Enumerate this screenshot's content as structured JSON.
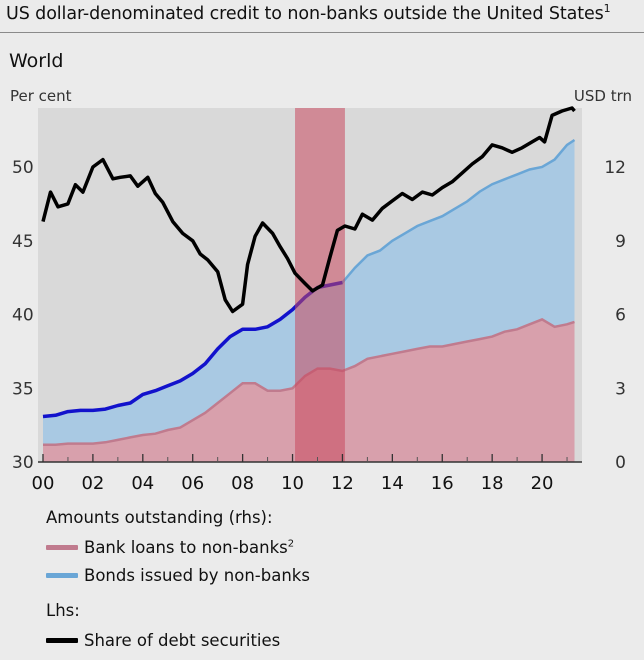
{
  "title": "US dollar-denominated credit to non-banks outside the United States",
  "title_footnote": "1",
  "panel_title": "World",
  "left_axis_unit": "Per cent",
  "right_axis_unit": "USD trn",
  "legend": {
    "group1_title": "Amounts outstanding (rhs):",
    "group2_title": "Lhs:",
    "items": [
      {
        "label": "Bank loans to non-banks",
        "footnote": "2",
        "color": "#c07b8e"
      },
      {
        "label": "Bonds issued by non-banks",
        "footnote": "",
        "color": "#6aa6d6"
      },
      {
        "label": "Share of debt securities",
        "footnote": "",
        "color": "#000000"
      }
    ]
  },
  "chart_data": {
    "type": "area",
    "x_tick_labels": [
      "00",
      "02",
      "04",
      "06",
      "08",
      "10",
      "12",
      "14",
      "16",
      "18",
      "20"
    ],
    "x_tick_years": [
      2000,
      2002,
      2004,
      2006,
      2008,
      2010,
      2012,
      2014,
      2016,
      2018,
      2020
    ],
    "xlim": [
      1999.8,
      2021.6
    ],
    "left_axis": {
      "ylim": [
        30,
        54
      ],
      "ticks": [
        30,
        35,
        40,
        45,
        50
      ]
    },
    "right_axis": {
      "ylim": [
        0,
        14.4
      ],
      "ticks": [
        0,
        3,
        6,
        9,
        12
      ]
    },
    "shaded_period": [
      2010.1,
      2012.1
    ],
    "colors": {
      "bank_fill": "#d8a0ac",
      "bank_line": "#c07b8e",
      "bond_fill": "#a9c9e3",
      "bond_line": "#1212cc",
      "share_line": "#000000",
      "shade": "#c8485e"
    },
    "series": [
      {
        "name": "Bank loans to non-banks",
        "axis": "right",
        "kind": "stacked-area",
        "x": [
          2000,
          2000.5,
          2001,
          2001.5,
          2002,
          2002.5,
          2003,
          2003.5,
          2004,
          2004.5,
          2005,
          2005.5,
          2006,
          2006.5,
          2007,
          2007.5,
          2008,
          2008.5,
          2009,
          2009.5,
          2010,
          2010.5,
          2011,
          2011.5,
          2012,
          2012.5,
          2013,
          2013.5,
          2014,
          2014.5,
          2015,
          2015.5,
          2016,
          2016.5,
          2017,
          2017.5,
          2018,
          2018.5,
          2019,
          2019.5,
          2020,
          2020.5,
          2021,
          2021.3
        ],
        "values": [
          0.7,
          0.7,
          0.75,
          0.75,
          0.75,
          0.8,
          0.9,
          1.0,
          1.1,
          1.15,
          1.3,
          1.4,
          1.7,
          2.0,
          2.4,
          2.8,
          3.2,
          3.2,
          2.9,
          2.9,
          3.0,
          3.5,
          3.8,
          3.8,
          3.7,
          3.9,
          4.2,
          4.3,
          4.4,
          4.5,
          4.6,
          4.7,
          4.7,
          4.8,
          4.9,
          5.0,
          5.1,
          5.3,
          5.4,
          5.6,
          5.8,
          5.5,
          5.6,
          5.7
        ]
      },
      {
        "name": "Bonds issued by non-banks",
        "axis": "right",
        "kind": "stacked-area",
        "note": "total outstanding (bank loans plus bonds); dark blue line drawn 2000–2012",
        "x": [
          2000,
          2000.5,
          2001,
          2001.5,
          2002,
          2002.5,
          2003,
          2003.5,
          2004,
          2004.5,
          2005,
          2005.5,
          2006,
          2006.5,
          2007,
          2007.5,
          2008,
          2008.5,
          2009,
          2009.5,
          2010,
          2010.5,
          2011,
          2011.5,
          2012,
          2012.5,
          2013,
          2013.5,
          2014,
          2014.5,
          2015,
          2015.5,
          2016,
          2016.5,
          2017,
          2017.5,
          2018,
          2018.5,
          2019,
          2019.5,
          2020,
          2020.5,
          2021,
          2021.3
        ],
        "values": [
          1.85,
          1.9,
          2.05,
          2.1,
          2.1,
          2.15,
          2.3,
          2.4,
          2.75,
          2.9,
          3.1,
          3.3,
          3.6,
          4.0,
          4.6,
          5.1,
          5.4,
          5.4,
          5.5,
          5.8,
          6.2,
          6.7,
          7.1,
          7.2,
          7.3,
          7.9,
          8.4,
          8.6,
          9.0,
          9.3,
          9.6,
          9.8,
          10.0,
          10.3,
          10.6,
          11.0,
          11.3,
          11.5,
          11.7,
          11.9,
          12.0,
          12.3,
          12.9,
          13.1
        ]
      },
      {
        "name": "Share of debt securities",
        "axis": "left",
        "kind": "line",
        "x": [
          2000,
          2000.3,
          2000.6,
          2001,
          2001.3,
          2001.6,
          2002,
          2002.4,
          2002.8,
          2003.1,
          2003.5,
          2003.8,
          2004.2,
          2004.5,
          2004.8,
          2005.2,
          2005.6,
          2006,
          2006.3,
          2006.6,
          2007,
          2007.3,
          2007.6,
          2008,
          2008.2,
          2008.5,
          2008.8,
          2009.2,
          2009.5,
          2009.8,
          2010.1,
          2010.5,
          2010.8,
          2011.2,
          2011.5,
          2011.8,
          2012.1,
          2012.5,
          2012.8,
          2013.2,
          2013.6,
          2014,
          2014.4,
          2014.8,
          2015.2,
          2015.6,
          2016,
          2016.4,
          2016.8,
          2017.2,
          2017.6,
          2018,
          2018.4,
          2018.8,
          2019.2,
          2019.6,
          2019.9,
          2020.1,
          2020.4,
          2020.8,
          2021.2,
          2021.3
        ],
        "values": [
          46.3,
          48.3,
          47.3,
          47.5,
          48.8,
          48.3,
          50.0,
          50.5,
          49.2,
          49.3,
          49.4,
          48.7,
          49.3,
          48.2,
          47.6,
          46.3,
          45.5,
          45.0,
          44.1,
          43.7,
          42.9,
          41.0,
          40.2,
          40.7,
          43.4,
          45.3,
          46.2,
          45.5,
          44.6,
          43.8,
          42.8,
          42.1,
          41.6,
          42.0,
          43.9,
          45.7,
          46.0,
          45.8,
          46.8,
          46.4,
          47.2,
          47.7,
          48.2,
          47.8,
          48.3,
          48.1,
          48.6,
          49.0,
          49.6,
          50.2,
          50.7,
          51.5,
          51.3,
          51.0,
          51.3,
          51.7,
          52.0,
          51.7,
          53.5,
          53.8,
          54.0,
          53.8
        ]
      }
    ]
  }
}
